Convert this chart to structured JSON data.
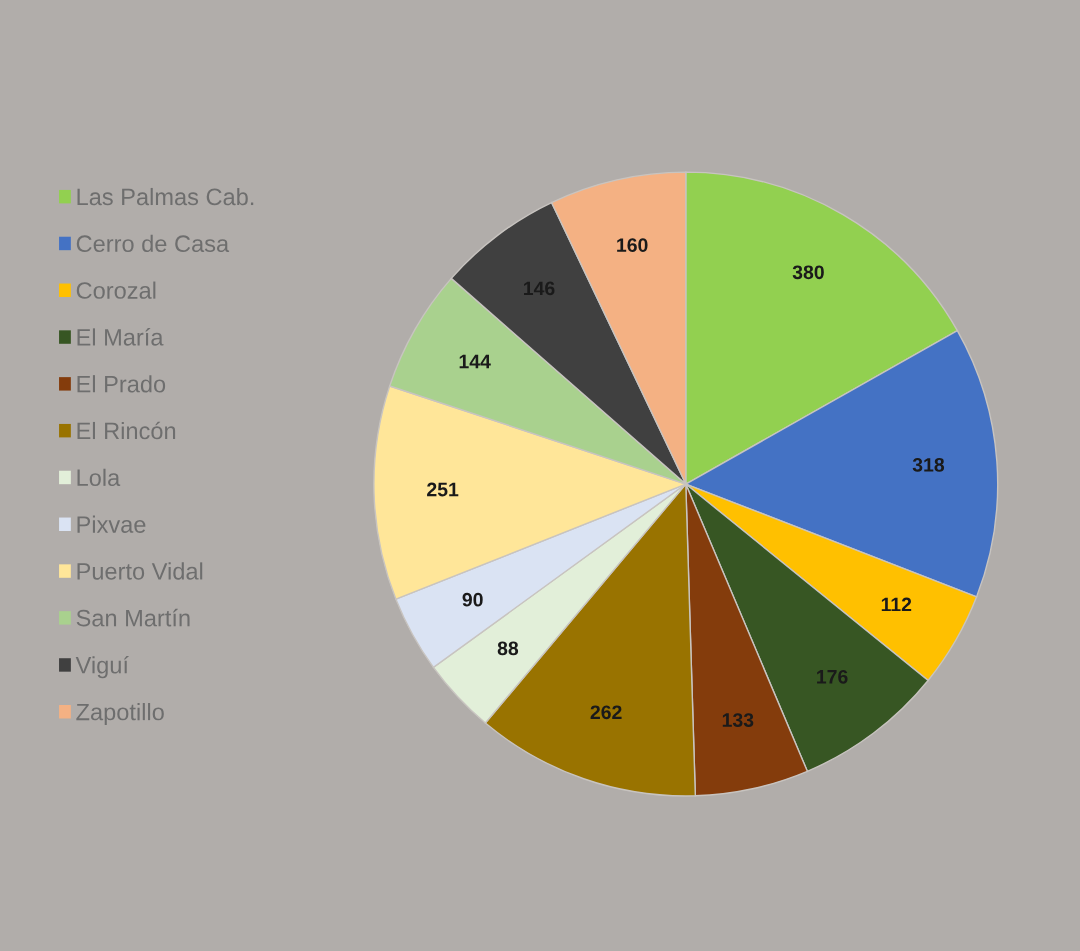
{
  "chart_data": {
    "type": "pie",
    "categories": [
      "Las Palmas Cab.",
      "Cerro de Casa",
      "Corozal",
      "El María",
      "El Prado",
      "El Rincón",
      "Lola",
      "Pixvae",
      "Puerto Vidal",
      "San Martín",
      "Viguí",
      "Zapotillo"
    ],
    "values": [
      380,
      318,
      112,
      176,
      133,
      262,
      88,
      90,
      251,
      144,
      146,
      160
    ],
    "colors": [
      "#92d050",
      "#4472c4",
      "#ffc000",
      "#375623",
      "#843c0c",
      "#997300",
      "#e2efd9",
      "#dae3f3",
      "#ffe699",
      "#a9d18e",
      "#404040",
      "#f4b183"
    ],
    "data_labels": true,
    "legend": "left"
  }
}
